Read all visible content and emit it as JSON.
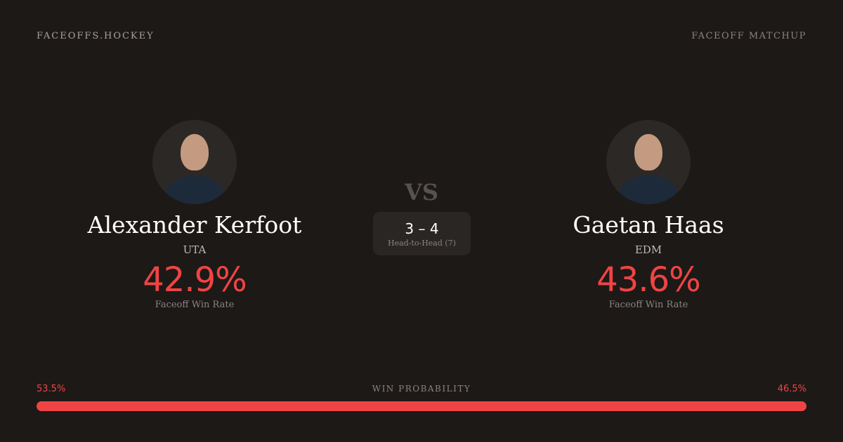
{
  "header": {
    "brand": "FACEOFFS.HOCKEY",
    "tag": "FACEOFF MATCHUP"
  },
  "players": [
    {
      "name": "Alexander Kerfoot",
      "team": "UTA",
      "rate": "42.9%",
      "rate_label": "Faceoff Win Rate"
    },
    {
      "name": "Gaetan Haas",
      "team": "EDM",
      "rate": "43.6%",
      "rate_label": "Faceoff Win Rate"
    }
  ],
  "vs": "VS",
  "head_to_head": {
    "score": "3 – 4",
    "label": "Head-to-Head (7)"
  },
  "win_probability": {
    "label": "WIN PROBABILITY",
    "left": "53.5%",
    "right": "46.5%",
    "left_value": 53.5,
    "right_value": 46.5,
    "color": "#ef4444"
  }
}
